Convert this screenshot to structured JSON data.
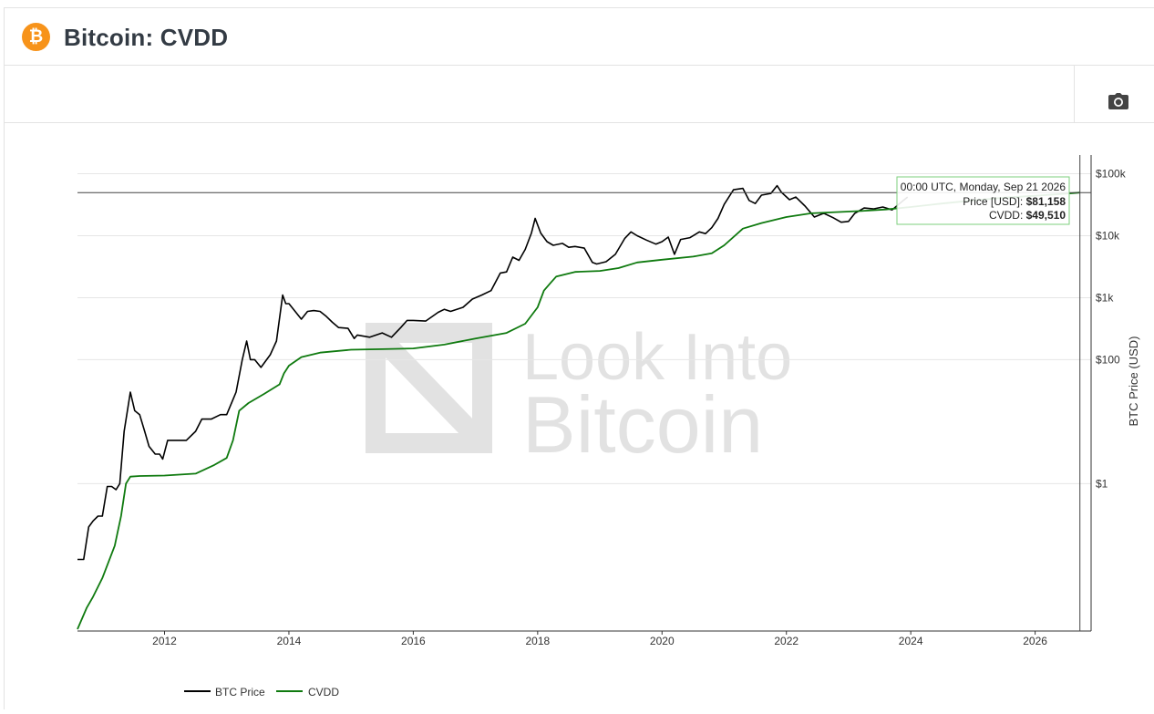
{
  "page": {
    "title": "Bitcoin: CVDD",
    "logo_glyph": "₿"
  },
  "toolbar": {
    "camera_icon": "camera-icon"
  },
  "tooltip": {
    "header": "00:00 UTC, Monday, Sep 21 2026",
    "price_label": "Price [USD]: ",
    "price_value": "$81,158",
    "cvdd_label": "CVDD: ",
    "cvdd_value": "$49,510"
  },
  "watermark": {
    "line1": "Look Into",
    "line2": "Bitcoin"
  },
  "colors": {
    "btc": "#000000",
    "cvdd": "#0f7a0f",
    "logo": "#f7931a",
    "grid": "#e6e6e6"
  },
  "chart_data": {
    "type": "line",
    "title": "Bitcoin: CVDD",
    "ylabel": "BTC Price (USD)",
    "yscale": "log",
    "ylim": [
      0.0042,
      200000
    ],
    "xlim": [
      2010.6,
      2026.9
    ],
    "y_ticks": [
      {
        "value": 1,
        "label": "$1"
      },
      {
        "value": 100,
        "label": "$100"
      },
      {
        "value": 1000,
        "label": "$1k"
      },
      {
        "value": 10000,
        "label": "$10k"
      },
      {
        "value": 100000,
        "label": "$100k"
      }
    ],
    "x_ticks": [
      {
        "value": 2012,
        "label": "2012"
      },
      {
        "value": 2014,
        "label": "2014"
      },
      {
        "value": 2016,
        "label": "2016"
      },
      {
        "value": 2018,
        "label": "2018"
      },
      {
        "value": 2020,
        "label": "2020"
      },
      {
        "value": 2022,
        "label": "2022"
      },
      {
        "value": 2024,
        "label": "2024"
      },
      {
        "value": 2026,
        "label": "2026"
      }
    ],
    "crosshair": {
      "x": 2026.72,
      "y": 49510
    },
    "legend_position": "bottom-left",
    "series": [
      {
        "name": "BTC Price",
        "color": "#000000",
        "points": [
          [
            2010.6,
            0.06
          ],
          [
            2010.7,
            0.06
          ],
          [
            2010.78,
            0.2
          ],
          [
            2010.85,
            0.25
          ],
          [
            2010.93,
            0.3
          ],
          [
            2011.0,
            0.3
          ],
          [
            2011.08,
            0.9
          ],
          [
            2011.15,
            0.9
          ],
          [
            2011.22,
            0.8
          ],
          [
            2011.28,
            1.0
          ],
          [
            2011.35,
            7
          ],
          [
            2011.45,
            30
          ],
          [
            2011.52,
            15
          ],
          [
            2011.6,
            13
          ],
          [
            2011.68,
            7
          ],
          [
            2011.75,
            4
          ],
          [
            2011.85,
            3
          ],
          [
            2011.92,
            3
          ],
          [
            2011.97,
            2.5
          ],
          [
            2012.05,
            5
          ],
          [
            2012.2,
            5
          ],
          [
            2012.35,
            5
          ],
          [
            2012.5,
            7
          ],
          [
            2012.6,
            11
          ],
          [
            2012.75,
            11
          ],
          [
            2012.9,
            13
          ],
          [
            2013.0,
            13
          ],
          [
            2013.15,
            30
          ],
          [
            2013.25,
            100
          ],
          [
            2013.32,
            200
          ],
          [
            2013.38,
            100
          ],
          [
            2013.45,
            100
          ],
          [
            2013.55,
            75
          ],
          [
            2013.7,
            120
          ],
          [
            2013.8,
            200
          ],
          [
            2013.9,
            1100
          ],
          [
            2013.95,
            800
          ],
          [
            2014.0,
            800
          ],
          [
            2014.1,
            600
          ],
          [
            2014.2,
            450
          ],
          [
            2014.3,
            600
          ],
          [
            2014.4,
            620
          ],
          [
            2014.5,
            600
          ],
          [
            2014.6,
            500
          ],
          [
            2014.7,
            400
          ],
          [
            2014.8,
            330
          ],
          [
            2014.95,
            320
          ],
          [
            2015.05,
            220
          ],
          [
            2015.1,
            250
          ],
          [
            2015.3,
            230
          ],
          [
            2015.5,
            270
          ],
          [
            2015.65,
            230
          ],
          [
            2015.8,
            330
          ],
          [
            2015.9,
            430
          ],
          [
            2016.0,
            430
          ],
          [
            2016.2,
            420
          ],
          [
            2016.4,
            580
          ],
          [
            2016.5,
            650
          ],
          [
            2016.6,
            600
          ],
          [
            2016.8,
            700
          ],
          [
            2016.95,
            950
          ],
          [
            2017.1,
            1100
          ],
          [
            2017.25,
            1300
          ],
          [
            2017.4,
            2500
          ],
          [
            2017.5,
            2600
          ],
          [
            2017.6,
            4500
          ],
          [
            2017.7,
            4000
          ],
          [
            2017.8,
            6000
          ],
          [
            2017.9,
            11000
          ],
          [
            2017.96,
            19000
          ],
          [
            2018.05,
            11000
          ],
          [
            2018.15,
            8000
          ],
          [
            2018.25,
            7000
          ],
          [
            2018.4,
            7500
          ],
          [
            2018.5,
            6500
          ],
          [
            2018.6,
            6700
          ],
          [
            2018.75,
            6300
          ],
          [
            2018.88,
            3700
          ],
          [
            2018.95,
            3500
          ],
          [
            2019.1,
            3800
          ],
          [
            2019.25,
            5000
          ],
          [
            2019.4,
            9000
          ],
          [
            2019.5,
            11500
          ],
          [
            2019.6,
            10000
          ],
          [
            2019.75,
            8500
          ],
          [
            2019.9,
            7300
          ],
          [
            2020.0,
            8000
          ],
          [
            2020.1,
            9500
          ],
          [
            2020.2,
            5000
          ],
          [
            2020.3,
            8700
          ],
          [
            2020.45,
            9300
          ],
          [
            2020.6,
            11500
          ],
          [
            2020.7,
            10800
          ],
          [
            2020.8,
            13500
          ],
          [
            2020.9,
            19000
          ],
          [
            2021.0,
            32000
          ],
          [
            2021.15,
            55000
          ],
          [
            2021.3,
            58000
          ],
          [
            2021.4,
            37000
          ],
          [
            2021.5,
            33000
          ],
          [
            2021.6,
            45000
          ],
          [
            2021.75,
            48000
          ],
          [
            2021.85,
            64000
          ],
          [
            2021.92,
            50000
          ],
          [
            2022.05,
            38000
          ],
          [
            2022.15,
            42000
          ],
          [
            2022.3,
            30000
          ],
          [
            2022.45,
            20000
          ],
          [
            2022.6,
            23000
          ],
          [
            2022.75,
            19500
          ],
          [
            2022.88,
            16500
          ],
          [
            2023.0,
            17000
          ],
          [
            2023.1,
            23000
          ],
          [
            2023.25,
            28000
          ],
          [
            2023.4,
            27000
          ],
          [
            2023.55,
            29000
          ],
          [
            2023.7,
            26000
          ],
          [
            2023.85,
            35000
          ],
          [
            2023.95,
            42000
          ]
        ]
      },
      {
        "name": "CVDD",
        "color": "#0f7a0f",
        "points": [
          [
            2010.6,
            0.0045
          ],
          [
            2010.75,
            0.01
          ],
          [
            2010.85,
            0.015
          ],
          [
            2011.0,
            0.03
          ],
          [
            2011.2,
            0.1
          ],
          [
            2011.3,
            0.3
          ],
          [
            2011.38,
            1.0
          ],
          [
            2011.45,
            1.3
          ],
          [
            2011.6,
            1.33
          ],
          [
            2012.0,
            1.35
          ],
          [
            2012.5,
            1.45
          ],
          [
            2012.8,
            2.0
          ],
          [
            2013.0,
            2.6
          ],
          [
            2013.1,
            5
          ],
          [
            2013.2,
            15
          ],
          [
            2013.35,
            20
          ],
          [
            2013.6,
            28
          ],
          [
            2013.85,
            40
          ],
          [
            2013.92,
            60
          ],
          [
            2014.0,
            80
          ],
          [
            2014.2,
            110
          ],
          [
            2014.5,
            130
          ],
          [
            2015.0,
            145
          ],
          [
            2015.5,
            148
          ],
          [
            2016.0,
            152
          ],
          [
            2016.5,
            175
          ],
          [
            2017.0,
            220
          ],
          [
            2017.5,
            270
          ],
          [
            2017.8,
            380
          ],
          [
            2018.0,
            700
          ],
          [
            2018.1,
            1300
          ],
          [
            2018.2,
            1700
          ],
          [
            2018.3,
            2200
          ],
          [
            2018.6,
            2600
          ],
          [
            2019.0,
            2700
          ],
          [
            2019.3,
            3000
          ],
          [
            2019.6,
            3700
          ],
          [
            2020.0,
            4100
          ],
          [
            2020.5,
            4600
          ],
          [
            2020.8,
            5200
          ],
          [
            2021.0,
            7000
          ],
          [
            2021.3,
            13000
          ],
          [
            2021.6,
            16000
          ],
          [
            2022.0,
            20000
          ],
          [
            2022.4,
            23000
          ],
          [
            2022.8,
            24000
          ],
          [
            2023.2,
            25000
          ],
          [
            2023.6,
            26500
          ],
          [
            2024.0,
            29000
          ],
          [
            2024.5,
            33000
          ],
          [
            2025.0,
            37000
          ],
          [
            2025.5,
            41000
          ],
          [
            2026.0,
            44000
          ],
          [
            2026.5,
            47500
          ],
          [
            2026.72,
            49510
          ]
        ]
      }
    ]
  }
}
